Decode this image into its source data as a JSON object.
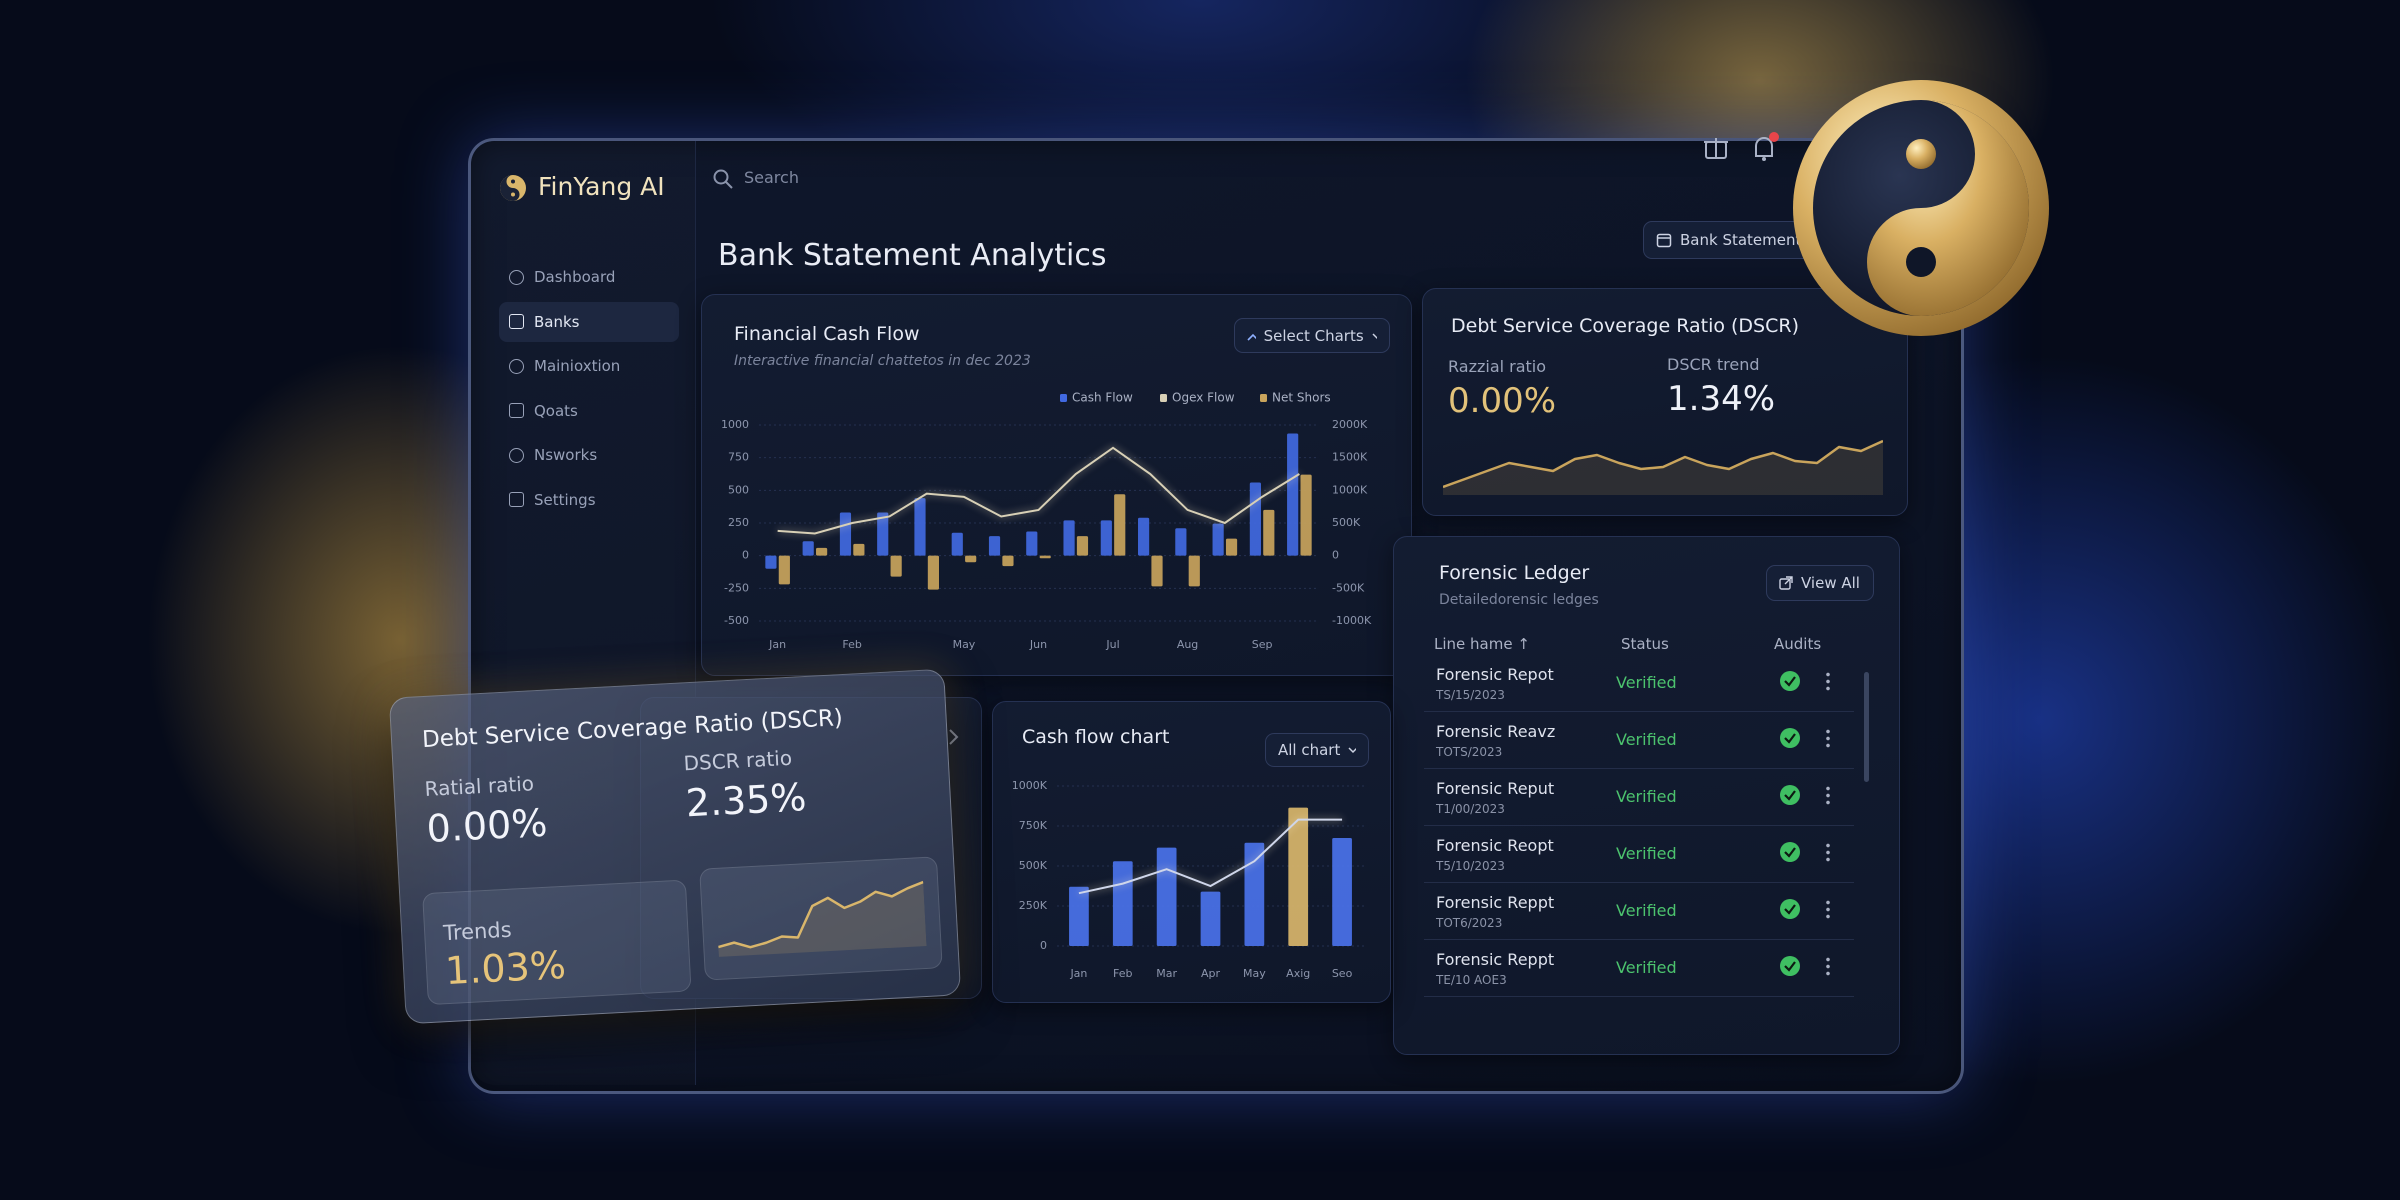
{
  "app": {
    "brand": "FinYang AI",
    "search": "Search",
    "nav": [
      "Dashboard",
      "Banks",
      "Mainioxtion",
      "Qoats",
      "Nsworks",
      "Settings"
    ],
    "active_nav": 1
  },
  "header": {
    "title": "Bank Statement Analytics",
    "button": "Bank Statement"
  },
  "cash_flow_panel": {
    "button": "Select Charts"
  },
  "cash_chart_panel": {
    "button": "All chart"
  },
  "dscr_panel": {
    "title": "Debt Service Coverage Ratio (DSCR)",
    "metrics": [
      {
        "label": "Razzial ratio",
        "value": "0.00%"
      },
      {
        "label": "DSCR trend",
        "value": "1.34%"
      }
    ]
  },
  "dscr_card": {
    "title": "Debt Service Coverage Ratio (DSCR)",
    "metrics": [
      {
        "label": "Ratial ratio",
        "value": "0.00%"
      },
      {
        "label": "DSCR ratio",
        "value": "2.35%"
      },
      {
        "label": "Trends",
        "value": "1.03%"
      }
    ]
  },
  "ledger": {
    "title": "Forensic Ledger",
    "subtitle": "Detailedorensic ledges",
    "button": "View All",
    "columns": [
      "Line hame ↑",
      "Status",
      "Audits"
    ],
    "rows": [
      {
        "name": "Forensic Repot",
        "date": "TS/15/2023",
        "status": "Verified"
      },
      {
        "name": "Forensic Reavz",
        "date": "TOTS/2023",
        "status": "Verified"
      },
      {
        "name": "Forensic Reput",
        "date": "T1/00/2023",
        "status": "Verified"
      },
      {
        "name": "Forensic Reopt",
        "date": "T5/10/2023",
        "status": "Verified"
      },
      {
        "name": "Forensic Reppt",
        "date": "TOT6/2023",
        "status": "Verified"
      },
      {
        "name": "Forensic Reppt",
        "date": "TE/10 AOE3",
        "status": "Verified"
      }
    ]
  },
  "chart_data": [
    {
      "type": "bar",
      "title": "Financial Cash Flow",
      "subtitle": "Interactive financial chattetos in dec 2023",
      "categories": [
        "Jan",
        null,
        "Feb",
        null,
        null,
        "May",
        null,
        "Jun",
        null,
        "Jul",
        null,
        "Aug",
        null,
        "Sep",
        null
      ],
      "series": [
        {
          "name": "Cash Flow",
          "color": "#4169e1",
          "values": [
            -100,
            110,
            330,
            330,
            440,
            175,
            150,
            185,
            270,
            270,
            290,
            210,
            245,
            560,
            935
          ]
        },
        {
          "name": "Ogex Flow",
          "type": "line",
          "axis": "y2",
          "color": "#d8d0b6",
          "values": [
            380000,
            340000,
            500000,
            600000,
            950000,
            900000,
            600000,
            700000,
            1250000,
            1650000,
            1250000,
            700000,
            500000,
            900000,
            1250000
          ]
        },
        {
          "name": "Net Shors",
          "color": "#c9a45c",
          "values": [
            -220,
            60,
            90,
            -160,
            -260,
            -50,
            -80,
            -20,
            150,
            470,
            -235,
            -235,
            130,
            350,
            620
          ]
        }
      ],
      "ylim": [
        -500,
        1000
      ],
      "yticks": [
        1000,
        750,
        500,
        250,
        0,
        -250,
        -500
      ],
      "y2lim": [
        -1000000,
        2000000
      ],
      "y2ticks": [
        {
          "value": 2000000,
          "label": "2000K"
        },
        {
          "value": 1500000,
          "label": "1500K"
        },
        {
          "value": 1000000,
          "label": "1000K"
        },
        {
          "value": 500000,
          "label": "500K"
        },
        0,
        {
          "value": -500000,
          "label": "-500K"
        },
        {
          "value": -1000000,
          "label": "-1000K"
        }
      ],
      "grid": true
    },
    {
      "type": "bar",
      "title": "Cash flow chart",
      "categories": [
        "Jan",
        "Feb",
        "Mar",
        "Apr",
        "May",
        "Axig",
        "Seo"
      ],
      "series": [
        {
          "color": "#4a72ea",
          "colors": [
            "#4a72ea",
            "#4a72ea",
            "#4a72ea",
            "#4a72ea",
            "#4a72ea",
            "#d9b66b",
            "#4a72ea"
          ],
          "values": [
            370000,
            530000,
            615000,
            340000,
            645000,
            865000,
            675000
          ]
        },
        {
          "type": "line",
          "color": "#cfd6ea",
          "values": [
            330000,
            390000,
            480000,
            375000,
            530000,
            790000,
            790000
          ]
        }
      ],
      "ylim": [
        0,
        1000000
      ],
      "yticks": [
        0,
        {
          "value": 250000,
          "label": "250K"
        },
        {
          "value": 500000,
          "label": "500K"
        },
        {
          "value": 750000,
          "label": "750K"
        },
        {
          "value": 1000000,
          "label": "1000K"
        }
      ],
      "grid": true
    },
    {
      "type": "line",
      "color": "#c9a45c",
      "values": [
        10,
        14,
        18,
        22,
        20,
        18,
        24,
        26,
        22,
        19,
        20,
        25,
        21,
        19,
        24,
        27,
        23,
        22,
        30,
        28,
        33
      ]
    },
    {
      "type": "line",
      "color": "#d9b66b",
      "values": [
        10,
        12,
        9,
        11,
        14,
        13,
        30,
        34,
        28,
        31,
        36,
        33,
        37,
        40
      ]
    }
  ]
}
